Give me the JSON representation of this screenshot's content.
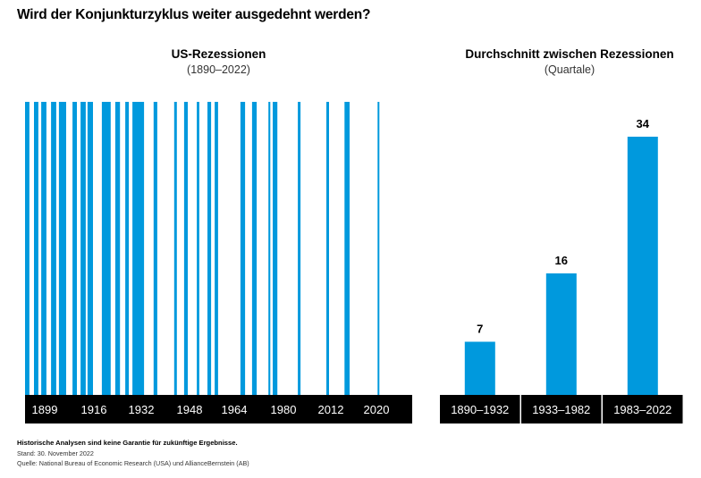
{
  "title": "Wird der Konjunkturzyklus weiter ausgedehnt werden?",
  "colors": {
    "bar": "#0099dd",
    "axis_band": "#000000",
    "axis_text": "#ffffff",
    "value_label": "#000000"
  },
  "chart_data": [
    {
      "type": "bar",
      "subtype": "timeline-bands",
      "title": "US-Rezessionen",
      "subtitle": "(1890–2022)",
      "xlabel": "",
      "ylabel": "",
      "tick_labels": [
        "1899",
        "1916",
        "1932",
        "1948",
        "1964",
        "1980",
        "2012",
        "2020"
      ],
      "tick_values": [
        1899,
        1916,
        1932,
        1948,
        1964,
        1980,
        2012,
        2020
      ],
      "xlim": [
        1890,
        2022
      ],
      "grid": false,
      "legend": "none",
      "recessions": [
        [
          1892.2,
          1893.7
        ],
        [
          1895.3,
          1896.8
        ],
        [
          1897.8,
          1899.6
        ],
        [
          1901.2,
          1903.0
        ],
        [
          1903.9,
          1906.4
        ],
        [
          1908.6,
          1910.1
        ],
        [
          1911.4,
          1913.2
        ],
        [
          1913.8,
          1915.7
        ],
        [
          1918.7,
          1921.7
        ],
        [
          1923.2,
          1924.8
        ],
        [
          1926.6,
          1927.8
        ],
        [
          1929.0,
          1932.9
        ],
        [
          1936.1,
          1937.3
        ],
        [
          1942.9,
          1943.8
        ],
        [
          1946.2,
          1947.4
        ],
        [
          1950.6,
          1951.5
        ],
        [
          1954.4,
          1955.7
        ],
        [
          1957.0,
          1958.2
        ],
        [
          1966.0,
          1967.5
        ],
        [
          1969.8,
          1971.3
        ],
        [
          1975.1,
          1975.7
        ],
        [
          1976.5,
          1978.0
        ],
        [
          1989.7,
          1991.5
        ],
        [
          2009.0,
          2010.8
        ],
        [
          2014.4,
          2015.3
        ],
        [
          2020.2,
          2020.5
        ]
      ]
    },
    {
      "type": "bar",
      "title": "Durchschnitt zwischen Rezessionen",
      "subtitle": "(Quartale)",
      "xlabel": "",
      "ylabel": "Quartale",
      "categories": [
        "1890–1932",
        "1933–1982",
        "1983–2022"
      ],
      "values": [
        7,
        16,
        34
      ],
      "value_labels": [
        "7",
        "16",
        "34"
      ],
      "ylim": [
        0,
        40
      ],
      "grid": false,
      "legend": "none"
    }
  ],
  "footer": {
    "disclaimer": "Historische Analysen sind keine Garantie für zukünftige Ergebnisse.",
    "date": "Stand: 30. November 2022",
    "source": "Quelle: National Bureau of Economic Research (USA) und AllianceBernstein (AB)"
  }
}
